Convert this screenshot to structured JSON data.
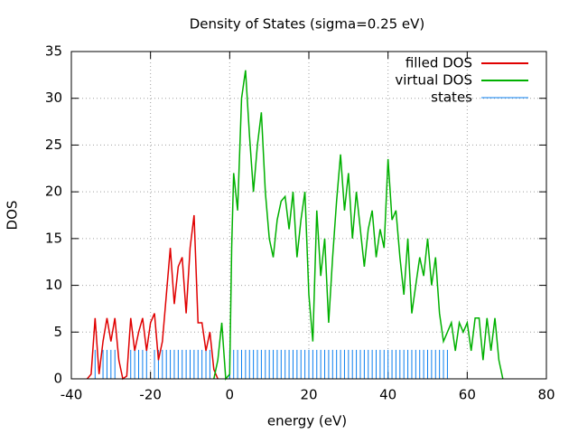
{
  "chart_data": {
    "type": "line",
    "title": "Density of States (sigma=0.25 eV)",
    "x_label": "energy (eV)",
    "y_label": "DOS",
    "xlim": [
      -40,
      80
    ],
    "xticks": [
      -40,
      -20,
      0,
      20,
      40,
      60,
      80
    ],
    "ylim": [
      0,
      35
    ],
    "yticks": [
      0,
      5,
      10,
      15,
      20,
      25,
      30,
      35
    ],
    "grid": true,
    "legend": "top-right",
    "series": [
      {
        "name": "filled DOS",
        "color": "#e00000",
        "style": "line",
        "x": [
          -36,
          -35,
          -34,
          -33,
          -32,
          -31,
          -30,
          -29,
          -28,
          -27,
          -26,
          -25,
          -24,
          -23,
          -22,
          -21,
          -20,
          -19,
          -18,
          -17,
          -16,
          -15,
          -14,
          -13,
          -12,
          -11,
          -10,
          -9,
          -8,
          -7,
          -6,
          -5,
          -4,
          -3
        ],
        "values": [
          0,
          0.5,
          6.5,
          0.5,
          4,
          6.5,
          4,
          6.5,
          2,
          0,
          0.3,
          6.5,
          3,
          5,
          6.5,
          3,
          6,
          7,
          2,
          4,
          9,
          14,
          8,
          12,
          13,
          7,
          14,
          17.5,
          6,
          6,
          3,
          5,
          1,
          0
        ]
      },
      {
        "name": "virtual DOS",
        "color": "#00b000",
        "style": "line",
        "x": [
          -4,
          -3,
          -2,
          -1,
          0,
          0.5,
          1,
          2,
          3,
          4,
          5,
          6,
          7,
          8,
          9,
          10,
          11,
          12,
          13,
          14,
          15,
          16,
          17,
          18,
          19,
          20,
          21,
          22,
          23,
          24,
          25,
          26,
          27,
          28,
          29,
          30,
          31,
          32,
          33,
          34,
          35,
          36,
          37,
          38,
          39,
          40,
          41,
          42,
          43,
          44,
          45,
          46,
          47,
          48,
          49,
          50,
          51,
          52,
          53,
          54,
          55,
          56,
          57,
          58,
          59,
          60,
          61,
          62,
          63,
          64,
          65,
          66,
          67,
          68,
          69
        ],
        "values": [
          0,
          2,
          6,
          0,
          0.5,
          14,
          22,
          18,
          30,
          33,
          26,
          20,
          25,
          28.5,
          20,
          15,
          13,
          17,
          19,
          19.5,
          16,
          20,
          13,
          17,
          20,
          9,
          4,
          18,
          11,
          15,
          6,
          13,
          19,
          24,
          18,
          22,
          15,
          20,
          16,
          12,
          16,
          18,
          13,
          16,
          14,
          23.5,
          17,
          18,
          13,
          9,
          15,
          7,
          10,
          13,
          11,
          15,
          10,
          13,
          7,
          4,
          5,
          6,
          3,
          6,
          5,
          6,
          3,
          6.5,
          6.5,
          2,
          6.5,
          3,
          6.5,
          2,
          0
        ]
      },
      {
        "name": "states",
        "color": "#0a7ff0",
        "style": "impulses",
        "x": [
          -34,
          -32,
          -31,
          -30,
          -29,
          -25,
          -24,
          -23,
          -22,
          -21,
          -19,
          -18,
          -17,
          -16,
          -15,
          -14,
          -13,
          -12,
          -11,
          -10,
          -9,
          -8,
          -7,
          -6,
          -5,
          0,
          1,
          2,
          3,
          4,
          5,
          6,
          7,
          8,
          9,
          10,
          11,
          12,
          13,
          14,
          15,
          16,
          17,
          18,
          19,
          20,
          21,
          22,
          23,
          24,
          25,
          26,
          27,
          28,
          29,
          30,
          31,
          32,
          33,
          34,
          35,
          36,
          37,
          38,
          39,
          40,
          41,
          42,
          43,
          44,
          45,
          46,
          47,
          48,
          49,
          50,
          51,
          52,
          53,
          54,
          55
        ],
        "values": [
          3.1,
          3.1,
          3.1,
          3.1,
          3.1,
          3.1,
          3.1,
          3.1,
          3.1,
          3.1,
          3.1,
          3.1,
          3.1,
          3.1,
          3.1,
          3.1,
          3.1,
          3.1,
          3.1,
          3.1,
          3.1,
          3.1,
          3.1,
          3.1,
          3.1,
          3.1,
          3.1,
          3.1,
          3.1,
          3.1,
          3.1,
          3.1,
          3.1,
          3.1,
          3.1,
          3.1,
          3.1,
          3.1,
          3.1,
          3.1,
          3.1,
          3.1,
          3.1,
          3.1,
          3.1,
          3.1,
          3.1,
          3.1,
          3.1,
          3.1,
          3.1,
          3.1,
          3.1,
          3.1,
          3.1,
          3.1,
          3.1,
          3.1,
          3.1,
          3.1,
          3.1,
          3.1,
          3.1,
          3.1,
          3.1,
          3.1,
          3.1,
          3.1,
          3.1,
          3.1,
          3.1,
          3.1,
          3.1,
          3.1,
          3.1,
          3.1,
          3.1,
          3.1,
          3.1,
          3.1,
          3.1
        ]
      }
    ]
  }
}
